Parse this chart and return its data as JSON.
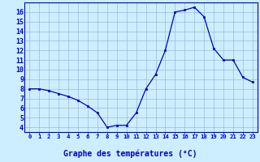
{
  "x": [
    0,
    1,
    2,
    3,
    4,
    5,
    6,
    7,
    8,
    9,
    10,
    11,
    12,
    13,
    14,
    15,
    16,
    17,
    18,
    19,
    20,
    21,
    22,
    23
  ],
  "y": [
    8.0,
    8.0,
    7.8,
    7.5,
    7.2,
    6.8,
    6.2,
    5.5,
    4.0,
    4.2,
    4.2,
    5.5,
    8.0,
    9.5,
    12.0,
    16.0,
    16.2,
    16.5,
    15.5,
    12.2,
    11.0,
    11.0,
    9.2,
    8.7
  ],
  "line_color": "#0000cc",
  "marker_color": "#0000cc",
  "bg_color": "#cceeff",
  "grid_color": "#99bbdd",
  "ylabel_ticks": [
    4,
    5,
    6,
    7,
    8,
    9,
    10,
    11,
    12,
    13,
    14,
    15,
    16
  ],
  "xlim": [
    -0.5,
    23.5
  ],
  "ylim": [
    3.5,
    17.0
  ],
  "xtick_labels": [
    "0",
    "1",
    "2",
    "3",
    "4",
    "5",
    "6",
    "7",
    "8",
    "9",
    "10",
    "11",
    "12",
    "13",
    "14",
    "15",
    "16",
    "17",
    "18",
    "19",
    "20",
    "21",
    "22",
    "23"
  ],
  "bottom_label": "Graphe des températures (°C)"
}
